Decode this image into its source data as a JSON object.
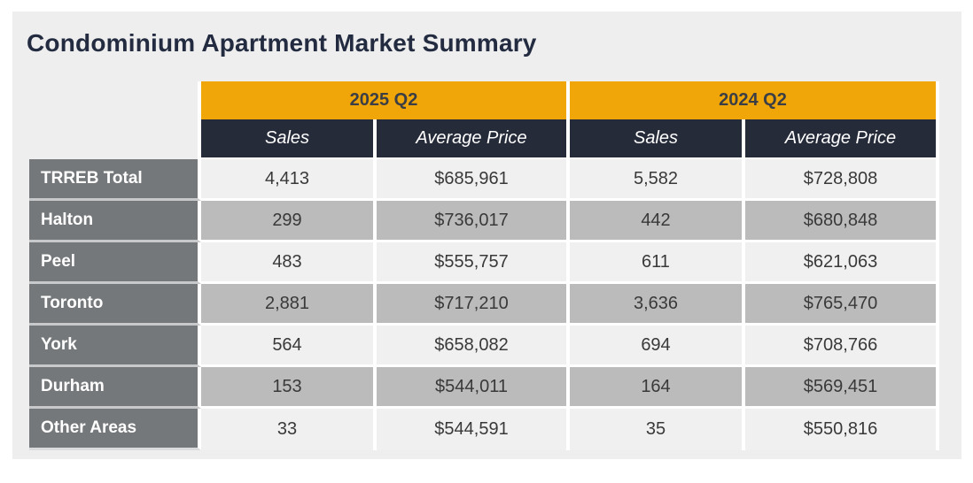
{
  "page": {
    "title": "Condominium Apartment Market Summary"
  },
  "table": {
    "column_groups": [
      {
        "label": "2025 Q2"
      },
      {
        "label": "2024 Q2"
      }
    ],
    "sub_headers": [
      "Sales",
      "Average Price",
      "Sales",
      "Average Price"
    ],
    "rows": [
      {
        "label": "TRREB Total",
        "values": [
          "4,413",
          "$685,961",
          "5,582",
          "$728,808"
        ]
      },
      {
        "label": "Halton",
        "values": [
          "299",
          "$736,017",
          "442",
          "$680,848"
        ]
      },
      {
        "label": "Peel",
        "values": [
          "483",
          "$555,757",
          "611",
          "$621,063"
        ]
      },
      {
        "label": "Toronto",
        "values": [
          "2,881",
          "$717,210",
          "3,636",
          "$765,470"
        ]
      },
      {
        "label": "York",
        "values": [
          "564",
          "$658,082",
          "694",
          "$708,766"
        ]
      },
      {
        "label": "Durham",
        "values": [
          "153",
          "$544,011",
          "164",
          "$569,451"
        ]
      },
      {
        "label": "Other Areas",
        "values": [
          "33",
          "$544,591",
          "35",
          "$550,816"
        ]
      }
    ],
    "colors": {
      "group_header_bg": "#f0a608",
      "sub_header_bg": "#262b3a",
      "row_header_bg": "#75787a",
      "row_light_bg": "#f1f0f0",
      "row_dark_bg": "#bbbbbb",
      "title_text": "#222b40",
      "panel_bg": "#efeeee"
    }
  },
  "chart_data": {
    "type": "table",
    "title": "Condominium Apartment Market Summary",
    "column_groups": [
      "2025 Q2",
      "2024 Q2"
    ],
    "columns": [
      "Sales (2025 Q2)",
      "Average Price (2025 Q2)",
      "Sales (2024 Q2)",
      "Average Price (2024 Q2)"
    ],
    "row_labels": [
      "TRREB Total",
      "Halton",
      "Peel",
      "Toronto",
      "York",
      "Durham",
      "Other Areas"
    ],
    "values": [
      [
        4413,
        685961,
        5582,
        728808
      ],
      [
        299,
        736017,
        442,
        680848
      ],
      [
        483,
        555757,
        611,
        621063
      ],
      [
        2881,
        717210,
        3636,
        765470
      ],
      [
        564,
        658082,
        694,
        708766
      ],
      [
        153,
        544011,
        164,
        569451
      ],
      [
        33,
        544591,
        35,
        550816
      ]
    ]
  }
}
